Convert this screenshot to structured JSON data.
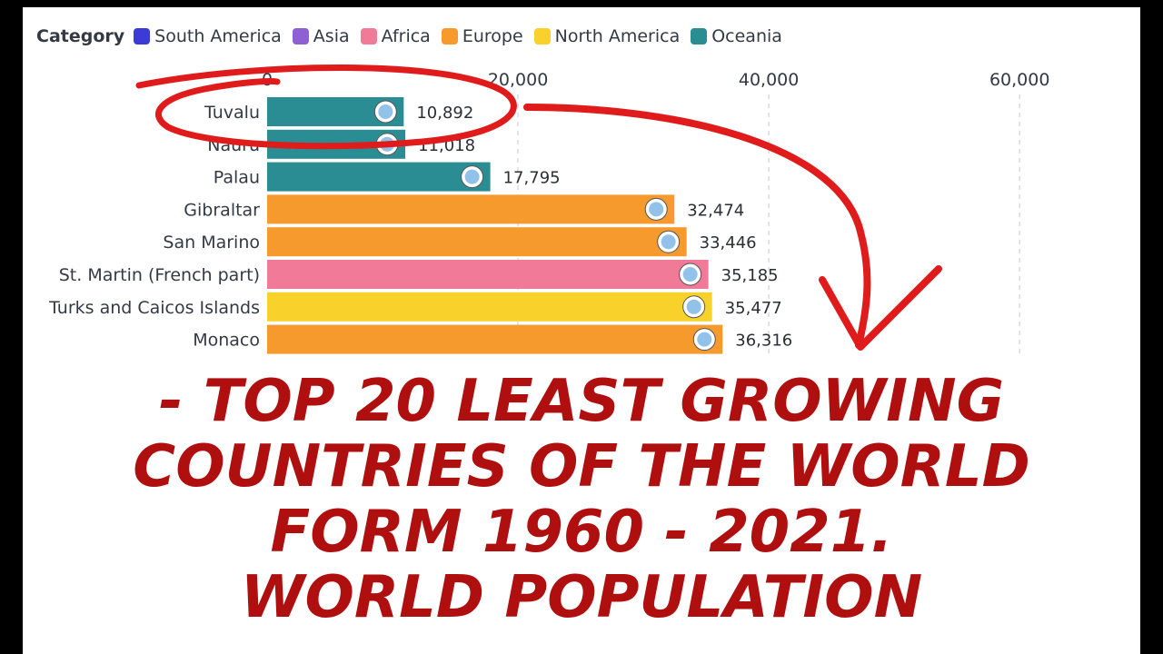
{
  "legend": {
    "title": "Category",
    "items": [
      {
        "label": "South America",
        "color": "#3d3bd8"
      },
      {
        "label": "Asia",
        "color": "#8f5fd6"
      },
      {
        "label": "Africa",
        "color": "#f07a98"
      },
      {
        "label": "Europe",
        "color": "#f79a2e"
      },
      {
        "label": "North America",
        "color": "#f8d22a"
      },
      {
        "label": "Oceania",
        "color": "#2a8d94"
      }
    ]
  },
  "chart_data": {
    "type": "bar",
    "orientation": "horizontal",
    "xlim": [
      0,
      66000
    ],
    "x_ticks": [
      "0",
      "20,000",
      "40,000",
      "60,000"
    ],
    "x_tick_values": [
      0,
      20000,
      40000,
      60000
    ],
    "grid": true,
    "legend_position": "top-left",
    "bars": [
      {
        "label": "Tuvalu",
        "value": 10892,
        "value_label": "10,892",
        "category": "Oceania"
      },
      {
        "label": "Nauru",
        "value": 11018,
        "value_label": "11,018",
        "category": "Oceania"
      },
      {
        "label": "Palau",
        "value": 17795,
        "value_label": "17,795",
        "category": "Oceania"
      },
      {
        "label": "Gibraltar",
        "value": 32474,
        "value_label": "32,474",
        "category": "Europe"
      },
      {
        "label": "San Marino",
        "value": 33446,
        "value_label": "33,446",
        "category": "Europe"
      },
      {
        "label": "St. Martin (French part)",
        "value": 35185,
        "value_label": "35,185",
        "category": "Africa"
      },
      {
        "label": "Turks and Caicos Islands",
        "value": 35477,
        "value_label": "35,477",
        "category": "North America"
      },
      {
        "label": "Monaco",
        "value": 36316,
        "value_label": "36,316",
        "category": "Europe"
      }
    ]
  },
  "headline": {
    "line1": "- TOP 20 LEAST  GROWING",
    "line2": "COUNTRIES OF THE WORLD",
    "line3": "FORM 1960 - 2021.",
    "line4": "WORLD POPULATION"
  },
  "colors": {
    "annotation": "#e01b1b",
    "headline": "#b00f0f",
    "grid": "#d8dbe0",
    "axis_text": "#333a44"
  },
  "icons": [
    "flag-icon",
    "annotation-circle",
    "annotation-arrow"
  ]
}
